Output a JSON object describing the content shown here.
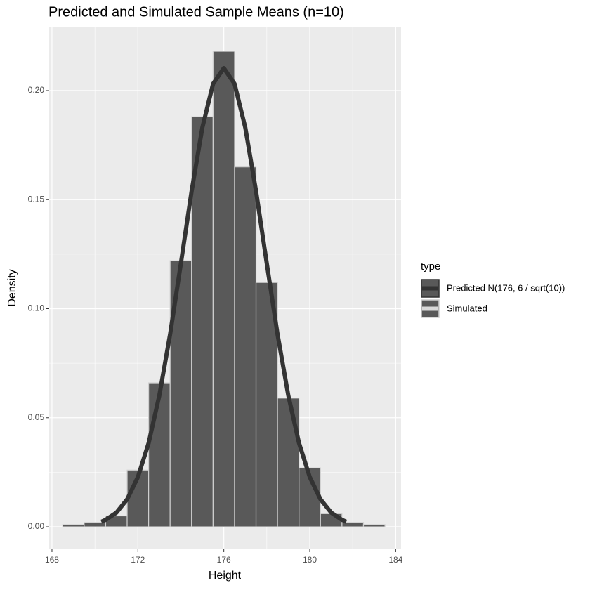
{
  "chart_data": {
    "type": "histogram",
    "title": "Predicted and Simulated Sample Means (n=10)",
    "x_label": "Height",
    "y_label": "Density",
    "legend_title": "type",
    "legend_position": "right",
    "grid": true,
    "xlim": [
      167.87,
      184.25
    ],
    "xticks": [
      168,
      172,
      176,
      180,
      184
    ],
    "ylim": [
      -0.0103,
      0.2293
    ],
    "yticks": [
      {
        "value": 0,
        "label": "0.00"
      },
      {
        "value": 0.05,
        "label": "0.05"
      },
      {
        "value": 0.1,
        "label": "0.10"
      },
      {
        "value": 0.15,
        "label": "0.15"
      },
      {
        "value": 0.2,
        "label": "0.20"
      }
    ],
    "series": [
      {
        "name": "Predicted N(176, 6 / sqrt(10))",
        "type": "line",
        "color": "#333333",
        "x": [
          170.3,
          170.5,
          171,
          171.5,
          172,
          172.5,
          173,
          173.5,
          174,
          174.5,
          175,
          175.5,
          176,
          176.5,
          177,
          177.5,
          178,
          178.5,
          179,
          179.5,
          180,
          180.5,
          181,
          181.5,
          181.7
        ],
        "values": [
          0.0023,
          0.0032,
          0.0065,
          0.0126,
          0.0228,
          0.0384,
          0.0603,
          0.0883,
          0.1207,
          0.1539,
          0.183,
          0.2031,
          0.2103,
          0.2031,
          0.183,
          0.1539,
          0.1207,
          0.0883,
          0.0603,
          0.0384,
          0.0228,
          0.0126,
          0.0065,
          0.0032,
          0.0023
        ]
      },
      {
        "name": "Simulated",
        "type": "histogram",
        "color": "#595959",
        "bins": [
          168.5,
          169.5,
          170.5,
          171.5,
          172.5,
          173.5,
          174.5,
          175.5,
          176.5,
          177.5,
          178.5,
          179.5,
          180.5,
          181.5,
          182.5,
          183.5
        ],
        "values": [
          0.001,
          0.002,
          0.005,
          0.026,
          0.066,
          0.122,
          0.188,
          0.218,
          0.165,
          0.112,
          0.059,
          0.027,
          0.006,
          0.002,
          0.001
        ]
      }
    ]
  }
}
